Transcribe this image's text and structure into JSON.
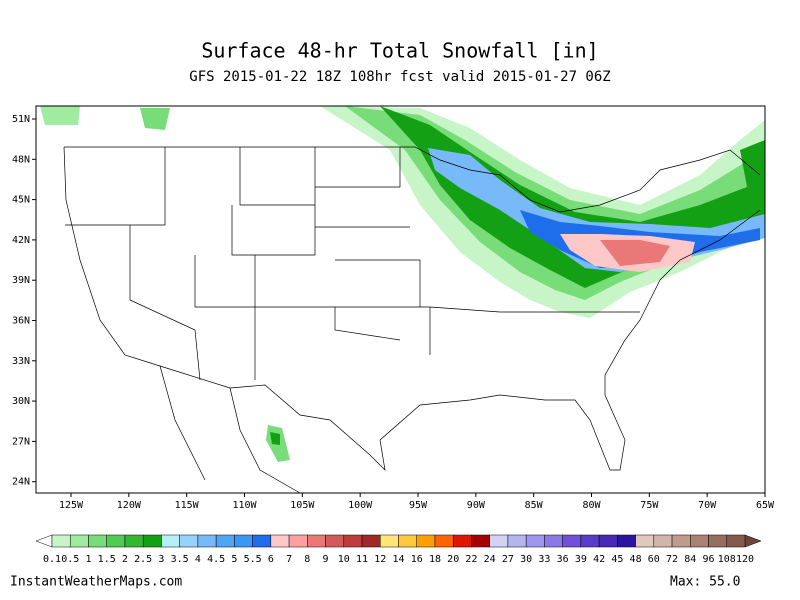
{
  "title": "Surface 48-hr Total Snowfall [in]",
  "subtitle": "GFS 2015-01-22 18Z 108hr fcst valid 2015-01-27 06Z",
  "latitude_labels": [
    "51N",
    "48N",
    "45N",
    "42N",
    "39N",
    "36N",
    "33N",
    "30N",
    "27N",
    "24N"
  ],
  "longitude_labels": [
    "125W",
    "120W",
    "115W",
    "110W",
    "105W",
    "100W",
    "95W",
    "90W",
    "85W",
    "80W",
    "75W",
    "70W",
    "65W"
  ],
  "colorbar": {
    "labels": [
      "0.1",
      "0.5",
      "1",
      "1.5",
      "2",
      "2.5",
      "3",
      "3.5",
      "4",
      "4.5",
      "5",
      "5.5",
      "6",
      "7",
      "8",
      "9",
      "10",
      "11",
      "12",
      "14",
      "16",
      "18",
      "20",
      "22",
      "24",
      "27",
      "30",
      "33",
      "36",
      "39",
      "42",
      "45",
      "48",
      "60",
      "72",
      "84",
      "96",
      "108",
      "120"
    ],
    "colors": [
      "#c8f5c8",
      "#a0eba0",
      "#78dc78",
      "#50cd50",
      "#32b932",
      "#14a014",
      "#b4f0fa",
      "#96d2fa",
      "#78b9fa",
      "#50a5f5",
      "#3c96f5",
      "#1e6eeb",
      "#ffc8c8",
      "#ffa0a0",
      "#eb7878",
      "#d25a5a",
      "#be3c3c",
      "#a02828",
      "#ffe678",
      "#ffc83c",
      "#ffa000",
      "#ff6400",
      "#e11400",
      "#a50000",
      "#d2d2f5",
      "#b4b4f0",
      "#a096f0",
      "#8c78e6",
      "#7050dc",
      "#5a3cc8",
      "#4628b4",
      "#2d14a0",
      "#e1c8be",
      "#d2b4aa",
      "#be9b8c",
      "#aa8273",
      "#966e5f",
      "#825a4b"
    ],
    "under_color": "#ffffff",
    "over_color": "#6e4637"
  },
  "footer": {
    "source": "InstantWeatherMaps.com",
    "max": "Max:  55.0"
  }
}
